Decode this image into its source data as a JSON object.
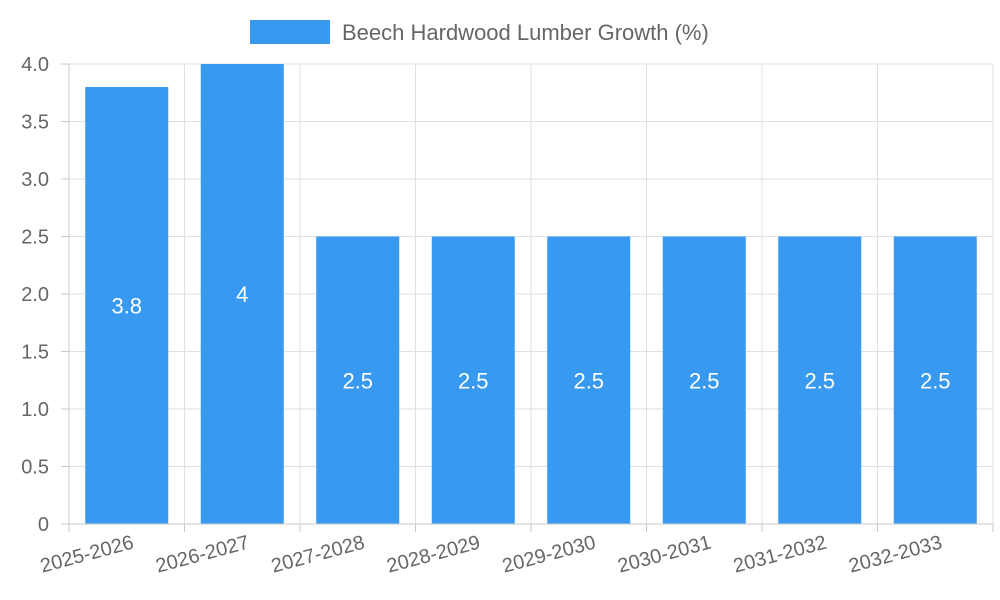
{
  "chart_data": {
    "type": "bar",
    "title": "",
    "xlabel": "",
    "ylabel": "",
    "legend": "top-center",
    "grid": true,
    "series": [
      {
        "name": "Beech Hardwood Lumber Growth (%)",
        "color": "#3799f0",
        "values": [
          3.8,
          4,
          2.5,
          2.5,
          2.5,
          2.5,
          2.5,
          2.5
        ]
      }
    ],
    "categories": [
      "2025-2026",
      "2026-2027",
      "2027-2028",
      "2028-2029",
      "2029-2030",
      "2030-2031",
      "2031-2032",
      "2032-2033"
    ],
    "ylim": [
      0,
      4
    ],
    "yticks": [
      "0",
      "0.5",
      "1.0",
      "1.5",
      "2.0",
      "2.5",
      "3.0",
      "3.5",
      "4.0"
    ],
    "data_labels": [
      "3.8",
      "4",
      "2.5",
      "2.5",
      "2.5",
      "2.5",
      "2.5",
      "2.5"
    ]
  }
}
